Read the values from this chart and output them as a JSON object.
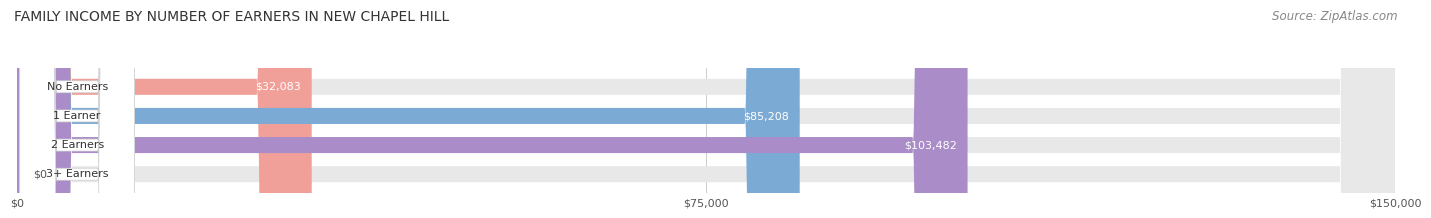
{
  "title": "FAMILY INCOME BY NUMBER OF EARNERS IN NEW CHAPEL HILL",
  "source": "Source: ZipAtlas.com",
  "categories": [
    "No Earners",
    "1 Earner",
    "2 Earners",
    "3+ Earners"
  ],
  "values": [
    32083,
    85208,
    103482,
    0
  ],
  "bar_colors": [
    "#f0a099",
    "#7baad4",
    "#a98cc8",
    "#5ec8c8"
  ],
  "xlim": [
    0,
    150000
  ],
  "xticks": [
    0,
    75000,
    150000
  ],
  "xtick_labels": [
    "$0",
    "$75,000",
    "$150,000"
  ],
  "title_fontsize": 10,
  "source_fontsize": 8.5,
  "bar_height": 0.55,
  "fig_bg_color": "#ffffff",
  "value_label_color": "#ffffff",
  "value_label_outside_color": "#555555"
}
